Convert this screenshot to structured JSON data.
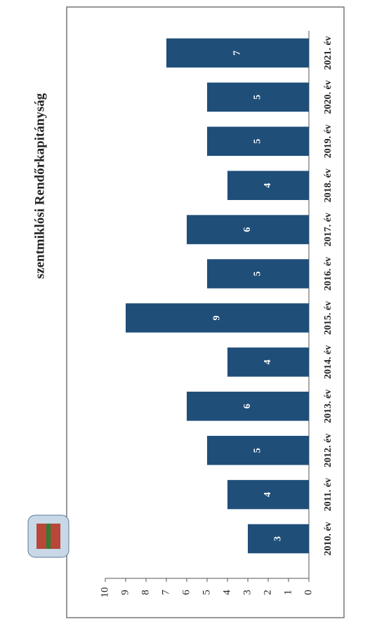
{
  "chart_data": {
    "type": "bar",
    "subtitle": "szentmiklósi Rendőrkapitányság",
    "categories": [
      "2010. év",
      "2011. év",
      "2012. év",
      "2013. év",
      "2014. év",
      "2015. év",
      "2016. év",
      "2017. év",
      "2018. év",
      "2019. év",
      "2020. év",
      "2021. év"
    ],
    "values": [
      3,
      4,
      5,
      6,
      4,
      9,
      5,
      6,
      4,
      5,
      5,
      7
    ],
    "color": "#1f4e79",
    "ylim": [
      0,
      10
    ],
    "yticks": [
      0,
      1,
      2,
      3,
      4,
      5,
      6,
      7,
      8,
      9,
      10
    ]
  }
}
